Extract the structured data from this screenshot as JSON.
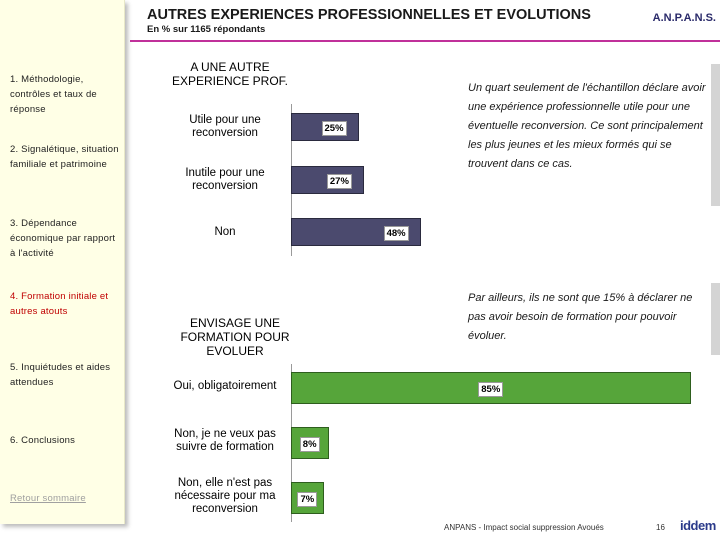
{
  "header": {
    "title": "AUTRES EXPERIENCES PROFESSIONNELLES ET EVOLUTIONS",
    "subtitle": "En % sur 1165 répondants",
    "brand": "A.N.P.A.N.S."
  },
  "sidebar": {
    "items": [
      "1. Méthodologie, contrôles et taux de réponse",
      "2. Signalétique, situation familiale et patrimoine",
      "3. Dépendance économique par rapport à l'activité",
      "4. Formation initiale et autres atouts",
      "5. Inquiétudes et aides attendues",
      "6. Conclusions"
    ],
    "active": 3,
    "link": "Retour sommaire"
  },
  "chart_data": [
    {
      "type": "bar",
      "title": "A UNE AUTRE EXPERIENCE PROF.",
      "categories": [
        "Utile pour une reconversion",
        "Inutile pour une reconversion",
        "Non"
      ],
      "values": [
        25,
        27,
        48
      ],
      "value_labels": [
        "25%",
        "27%",
        "48%"
      ],
      "color": "#4b4a6e"
    },
    {
      "type": "bar",
      "title": "ENVISAGE UNE FORMATION POUR EVOLUER",
      "categories": [
        "Oui, obligatoirement",
        "Non, je ne veux pas suivre de formation",
        "Non, elle n'est pas nécessaire pour ma reconversion"
      ],
      "values": [
        85,
        8,
        7
      ],
      "value_labels": [
        "85%",
        "8%",
        "7%"
      ],
      "color": "#56a53a"
    }
  ],
  "notes": [
    "Un quart seulement de l'échantillon déclare avoir une expérience professionnelle utile pour une éventuelle reconversion. Ce sont principalement les plus jeunes et les mieux formés qui se trouvent dans ce cas.",
    "Par ailleurs, ils ne sont que 15% à déclarer ne pas avoir besoin de formation pour pouvoir évoluer."
  ],
  "footer": {
    "text": "ANPANS - Impact social suppression Avoués",
    "page": "16",
    "logo": "iddem"
  }
}
